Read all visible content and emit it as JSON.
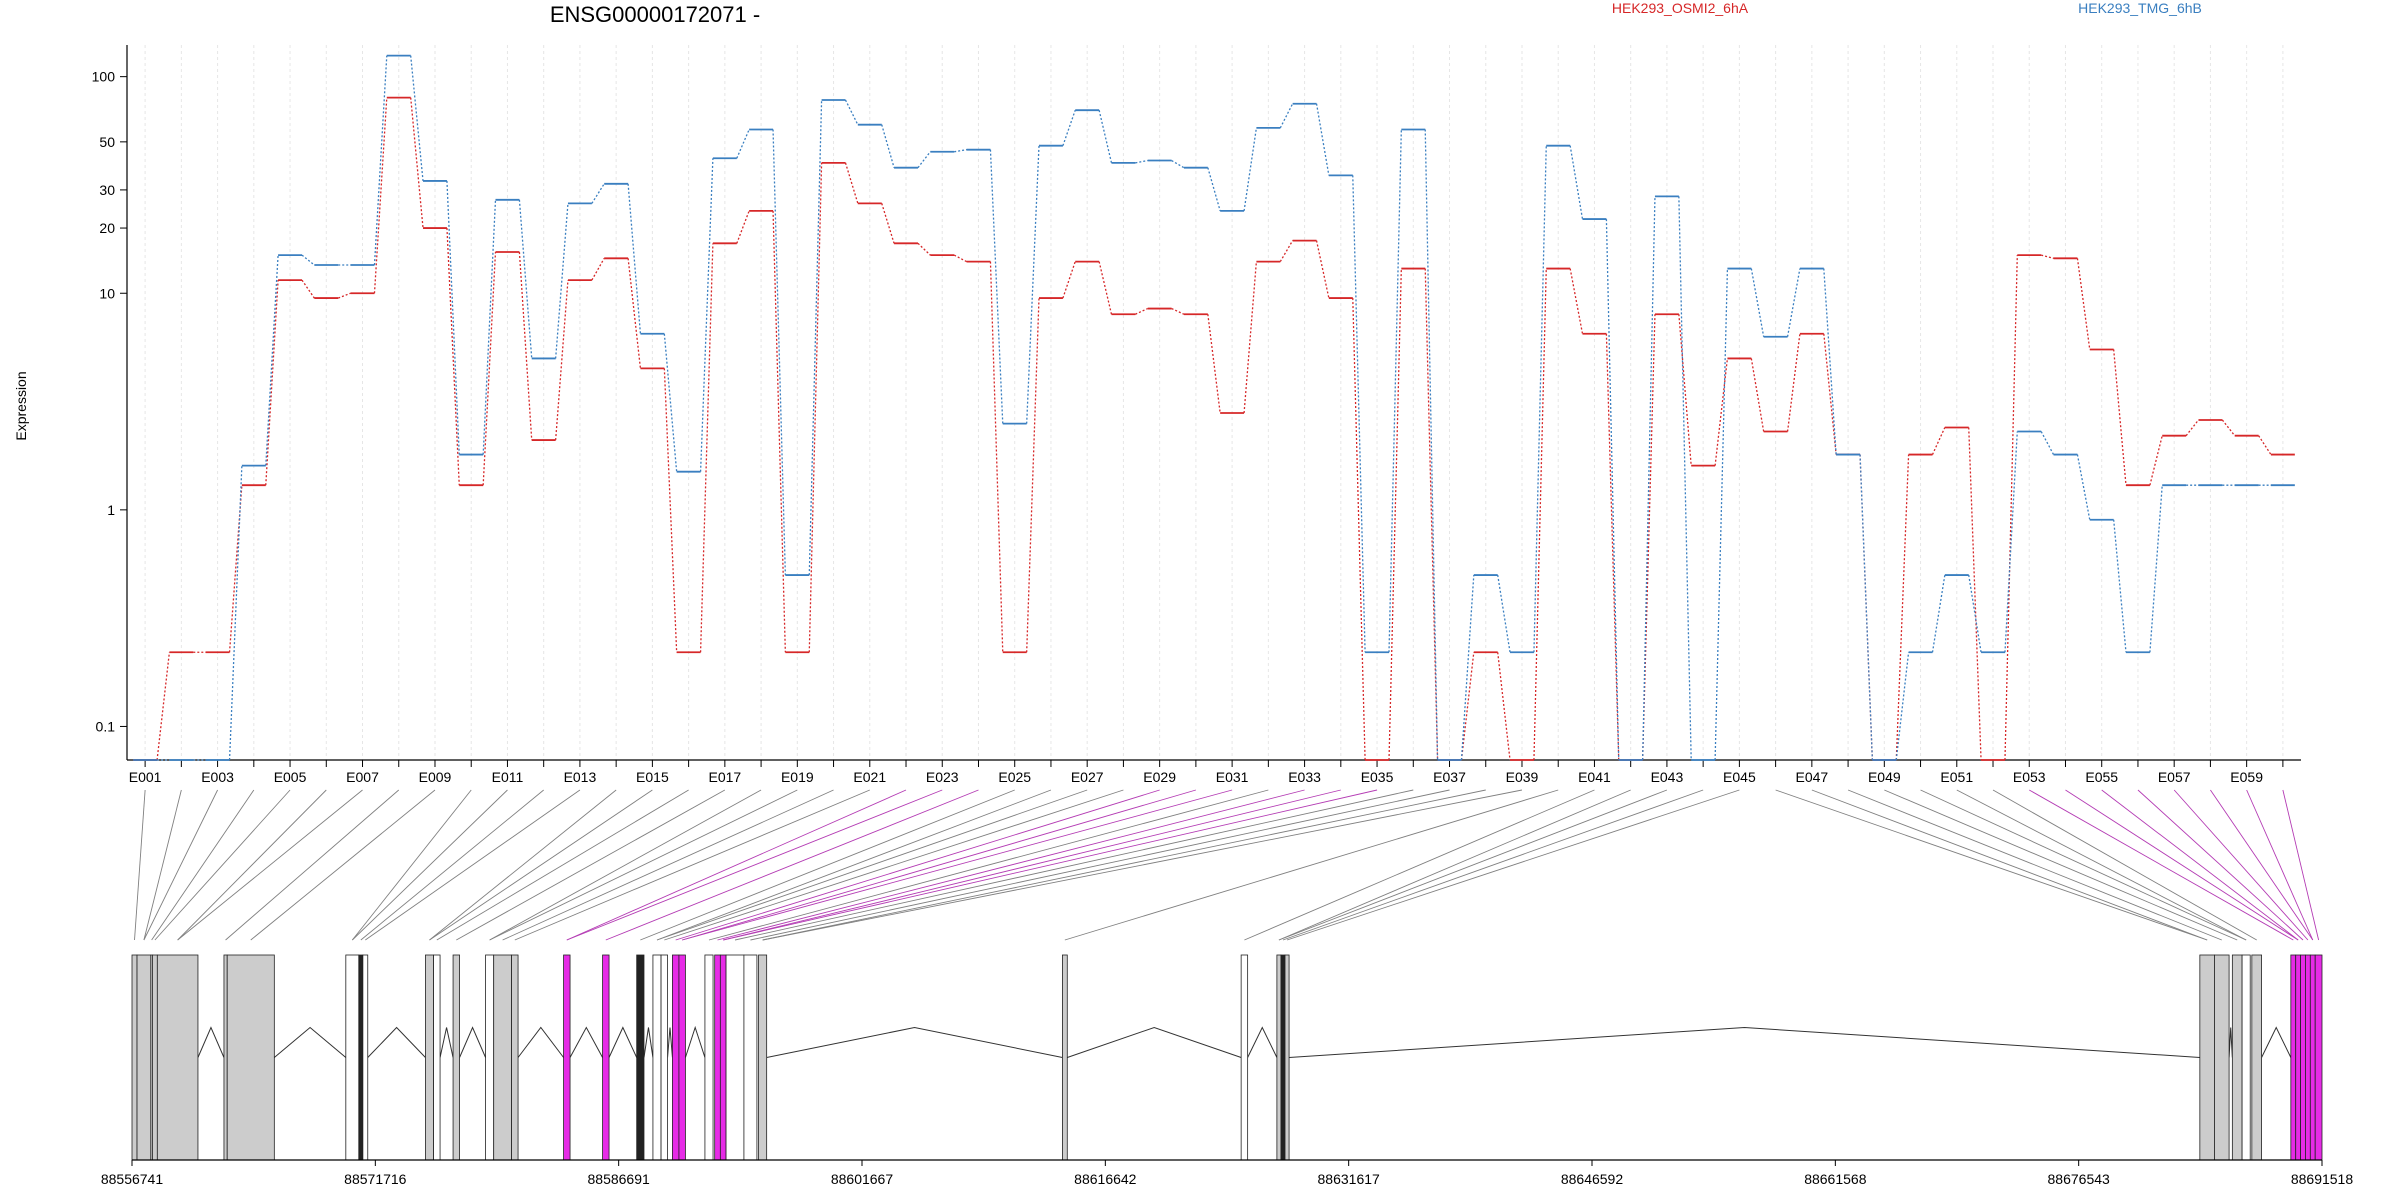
{
  "chart_data": {
    "type": "line",
    "title": "ENSG00000172071 -",
    "ylabel": "Expression",
    "y_scale": "log",
    "y_ticks": [
      0.1,
      1,
      10,
      20,
      30,
      50,
      100
    ],
    "ylim": [
      0.07,
      140
    ],
    "legend_placement": "top",
    "categories": [
      "E001",
      "E002",
      "E003",
      "E004",
      "E005",
      "E006",
      "E007",
      "E008",
      "E009",
      "E010",
      "E011",
      "E012",
      "E013",
      "E014",
      "E015",
      "E016",
      "E017",
      "E018",
      "E019",
      "E020",
      "E021",
      "E022",
      "E023",
      "E024",
      "E025",
      "E026",
      "E027",
      "E028",
      "E029",
      "E030",
      "E031",
      "E032",
      "E033",
      "E034",
      "E035",
      "E036",
      "E037",
      "E038",
      "E039",
      "E040",
      "E041",
      "E042",
      "E043",
      "E044",
      "E045",
      "E046",
      "E047",
      "E048",
      "E049",
      "E050",
      "E051",
      "E052",
      "E053",
      "E054",
      "E055",
      "E056",
      "E057",
      "E058",
      "E059",
      "E060"
    ],
    "tick_labels": [
      "E001",
      "E003",
      "E005",
      "E007",
      "E009",
      "E011",
      "E013",
      "E015",
      "E017",
      "E019",
      "E021",
      "E023",
      "E025",
      "E027",
      "E029",
      "E031",
      "E033",
      "E035",
      "E037",
      "E039",
      "E041",
      "E043",
      "E045",
      "E047",
      "E049",
      "E051",
      "E053",
      "E055",
      "E057",
      "E059"
    ],
    "series": [
      {
        "name": "HEK293_OSMI2_6hA",
        "color": "#d62728",
        "values": [
          0.07,
          0.22,
          0.22,
          1.3,
          11.5,
          9.5,
          10,
          80,
          20,
          1.3,
          15.5,
          2.1,
          11.5,
          14.5,
          4.5,
          0.22,
          17,
          24,
          0.22,
          40,
          26,
          17,
          15,
          14,
          0.22,
          9.5,
          14,
          8,
          8.5,
          8,
          2.8,
          14,
          17.5,
          9.5,
          0.07,
          13,
          0.07,
          0.22,
          0.07,
          13,
          6.5,
          0.07,
          8,
          1.6,
          5,
          2.3,
          6.5,
          1.8,
          0.07,
          1.8,
          2.4,
          0.07,
          15,
          14.5,
          5.5,
          1.3,
          2.2,
          2.6,
          2.2,
          1.8
        ]
      },
      {
        "name": "HEK293_TMG_6hB",
        "color": "#3a7fc0",
        "values": [
          0.07,
          0.07,
          0.07,
          1.6,
          15,
          13.5,
          13.5,
          125,
          33,
          1.8,
          27,
          5,
          26,
          32,
          6.5,
          1.5,
          42,
          57,
          0.5,
          78,
          60,
          38,
          45,
          46,
          2.5,
          48,
          70,
          40,
          41,
          38,
          24,
          58,
          75,
          35,
          0.22,
          57,
          0.07,
          0.5,
          0.22,
          48,
          22,
          0.07,
          28,
          0.07,
          13,
          6.3,
          13,
          1.8,
          0.07,
          0.22,
          0.5,
          0.22,
          2.3,
          1.8,
          0.9,
          0.22,
          1.3,
          1.3,
          1.3,
          1.3
        ]
      }
    ],
    "genomic_axis_labels": [
      "88556741",
      "88571716",
      "88586691",
      "88601667",
      "88616642",
      "88631617",
      "88646592",
      "88661568",
      "88676543",
      "88691518"
    ],
    "genomic_range": [
      88556741,
      88691518
    ],
    "exons": [
      {
        "s": 88556741,
        "e": 88557050,
        "c": "gray"
      },
      {
        "s": 88557050,
        "e": 88557900,
        "c": "gray"
      },
      {
        "s": 88557900,
        "e": 88558000,
        "c": "gray"
      },
      {
        "s": 88558000,
        "e": 88558300,
        "c": "gray"
      },
      {
        "s": 88558300,
        "e": 88560800,
        "c": "gray"
      },
      {
        "s": 88562400,
        "e": 88562600,
        "c": "gray"
      },
      {
        "s": 88562600,
        "e": 88565500,
        "c": "gray"
      },
      {
        "s": 88569900,
        "e": 88570700,
        "c": "white"
      },
      {
        "s": 88570700,
        "e": 88570950,
        "c": "black"
      },
      {
        "s": 88570950,
        "e": 88571250,
        "c": "white"
      },
      {
        "s": 88574800,
        "e": 88575300,
        "c": "gray"
      },
      {
        "s": 88575300,
        "e": 88575700,
        "c": "white"
      },
      {
        "s": 88576500,
        "e": 88576900,
        "c": "gray"
      },
      {
        "s": 88578500,
        "e": 88579000,
        "c": "white"
      },
      {
        "s": 88579000,
        "e": 88580100,
        "c": "gray"
      },
      {
        "s": 88580100,
        "e": 88580500,
        "c": "gray"
      },
      {
        "s": 88583300,
        "e": 88583700,
        "c": "magenta"
      },
      {
        "s": 88585700,
        "e": 88586100,
        "c": "magenta"
      },
      {
        "s": 88587800,
        "e": 88588250,
        "c": "black"
      },
      {
        "s": 88588800,
        "e": 88589300,
        "c": "white"
      },
      {
        "s": 88589300,
        "e": 88589700,
        "c": "white"
      },
      {
        "s": 88590000,
        "e": 88590400,
        "c": "magenta"
      },
      {
        "s": 88590400,
        "e": 88590800,
        "c": "magenta"
      },
      {
        "s": 88592000,
        "e": 88592500,
        "c": "white"
      },
      {
        "s": 88592600,
        "e": 88592950,
        "c": "magenta"
      },
      {
        "s": 88592950,
        "e": 88593300,
        "c": "magenta"
      },
      {
        "s": 88593300,
        "e": 88594400,
        "c": "white"
      },
      {
        "s": 88594400,
        "e": 88595200,
        "c": "white"
      },
      {
        "s": 88595300,
        "e": 88595800,
        "c": "gray"
      },
      {
        "s": 88614000,
        "e": 88614300,
        "c": "gray"
      },
      {
        "s": 88625000,
        "e": 88625400,
        "c": "white"
      },
      {
        "s": 88627200,
        "e": 88627450,
        "c": "gray"
      },
      {
        "s": 88627450,
        "e": 88627700,
        "c": "black"
      },
      {
        "s": 88627700,
        "e": 88627950,
        "c": "gray"
      },
      {
        "s": 88684000,
        "e": 88684900,
        "c": "gray"
      },
      {
        "s": 88684900,
        "e": 88685800,
        "c": "gray"
      },
      {
        "s": 88686000,
        "e": 88686600,
        "c": "gray"
      },
      {
        "s": 88686600,
        "e": 88687100,
        "c": "white"
      },
      {
        "s": 88687200,
        "e": 88687800,
        "c": "gray"
      },
      {
        "s": 88689600,
        "e": 88689900,
        "c": "magenta"
      },
      {
        "s": 88689900,
        "e": 88690200,
        "c": "magenta"
      },
      {
        "s": 88690200,
        "e": 88690500,
        "c": "magenta"
      },
      {
        "s": 88690500,
        "e": 88690800,
        "c": "magenta"
      },
      {
        "s": 88690800,
        "e": 88691100,
        "c": "magenta"
      },
      {
        "s": 88691100,
        "e": 88691518,
        "c": "magenta"
      }
    ]
  }
}
